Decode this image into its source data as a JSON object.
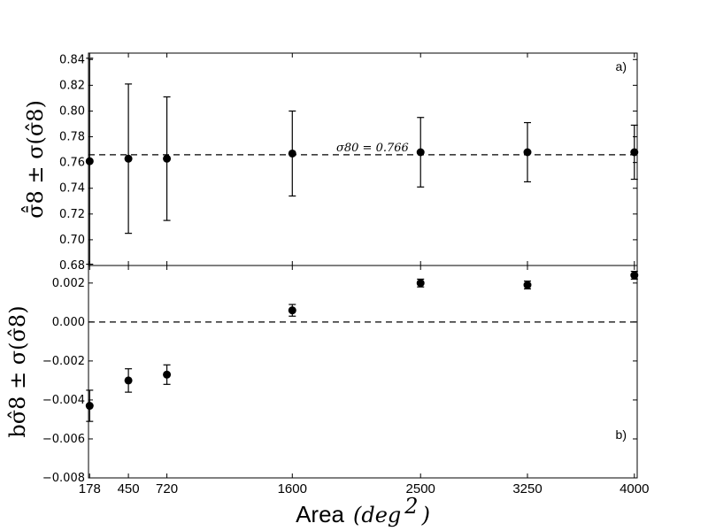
{
  "chart_data": [
    {
      "panel_label": "a)",
      "type": "scatter",
      "errorbars": true,
      "x": [
        178,
        450,
        720,
        1600,
        2500,
        3250,
        4000
      ],
      "y": [
        0.761,
        0.763,
        0.763,
        0.767,
        0.768,
        0.768,
        0.768
      ],
      "yerr": [
        0.08,
        0.058,
        0.048,
        0.033,
        0.027,
        0.023,
        0.021
      ],
      "ylabel": "σ̄̂8 ± σ(σ̂8)",
      "ylim": [
        0.68,
        0.845
      ],
      "yticks": [
        "0.68",
        "0.70",
        "0.72",
        "0.74",
        "0.76",
        "0.78",
        "0.80",
        "0.82",
        "0.84"
      ],
      "reference_line": {
        "y": 0.766,
        "style": "dashed",
        "label": "σ80 = 0.766"
      }
    },
    {
      "panel_label": "b)",
      "type": "scatter",
      "errorbars": true,
      "x": [
        178,
        450,
        720,
        1600,
        2500,
        3250,
        4000
      ],
      "y": [
        -0.0043,
        -0.003,
        -0.0027,
        0.0006,
        0.002,
        0.0019,
        0.0024
      ],
      "yerr": [
        0.0008,
        0.0006,
        0.0005,
        0.0003,
        0.0002,
        0.0002,
        0.0002
      ],
      "ylabel": "bσ̂8 ± σ(σ̂8)",
      "ylim": [
        -0.008,
        0.0029
      ],
      "yticks": [
        "−0.008",
        "−0.006",
        "−0.004",
        "−0.002",
        "0.000",
        "0.002"
      ],
      "reference_line": {
        "y": 0.0,
        "style": "dashed"
      }
    }
  ],
  "x_axis": {
    "label": "Area",
    "label_unit": "(deg",
    "label_power": "2",
    "label_close": ")",
    "xlim": [
      170,
      4020
    ],
    "ticks": [
      178,
      450,
      720,
      1600,
      2500,
      3250,
      4000
    ],
    "tick_labels": [
      "178",
      "450",
      "720",
      "1600",
      "2500",
      "3250",
      "4000"
    ]
  }
}
